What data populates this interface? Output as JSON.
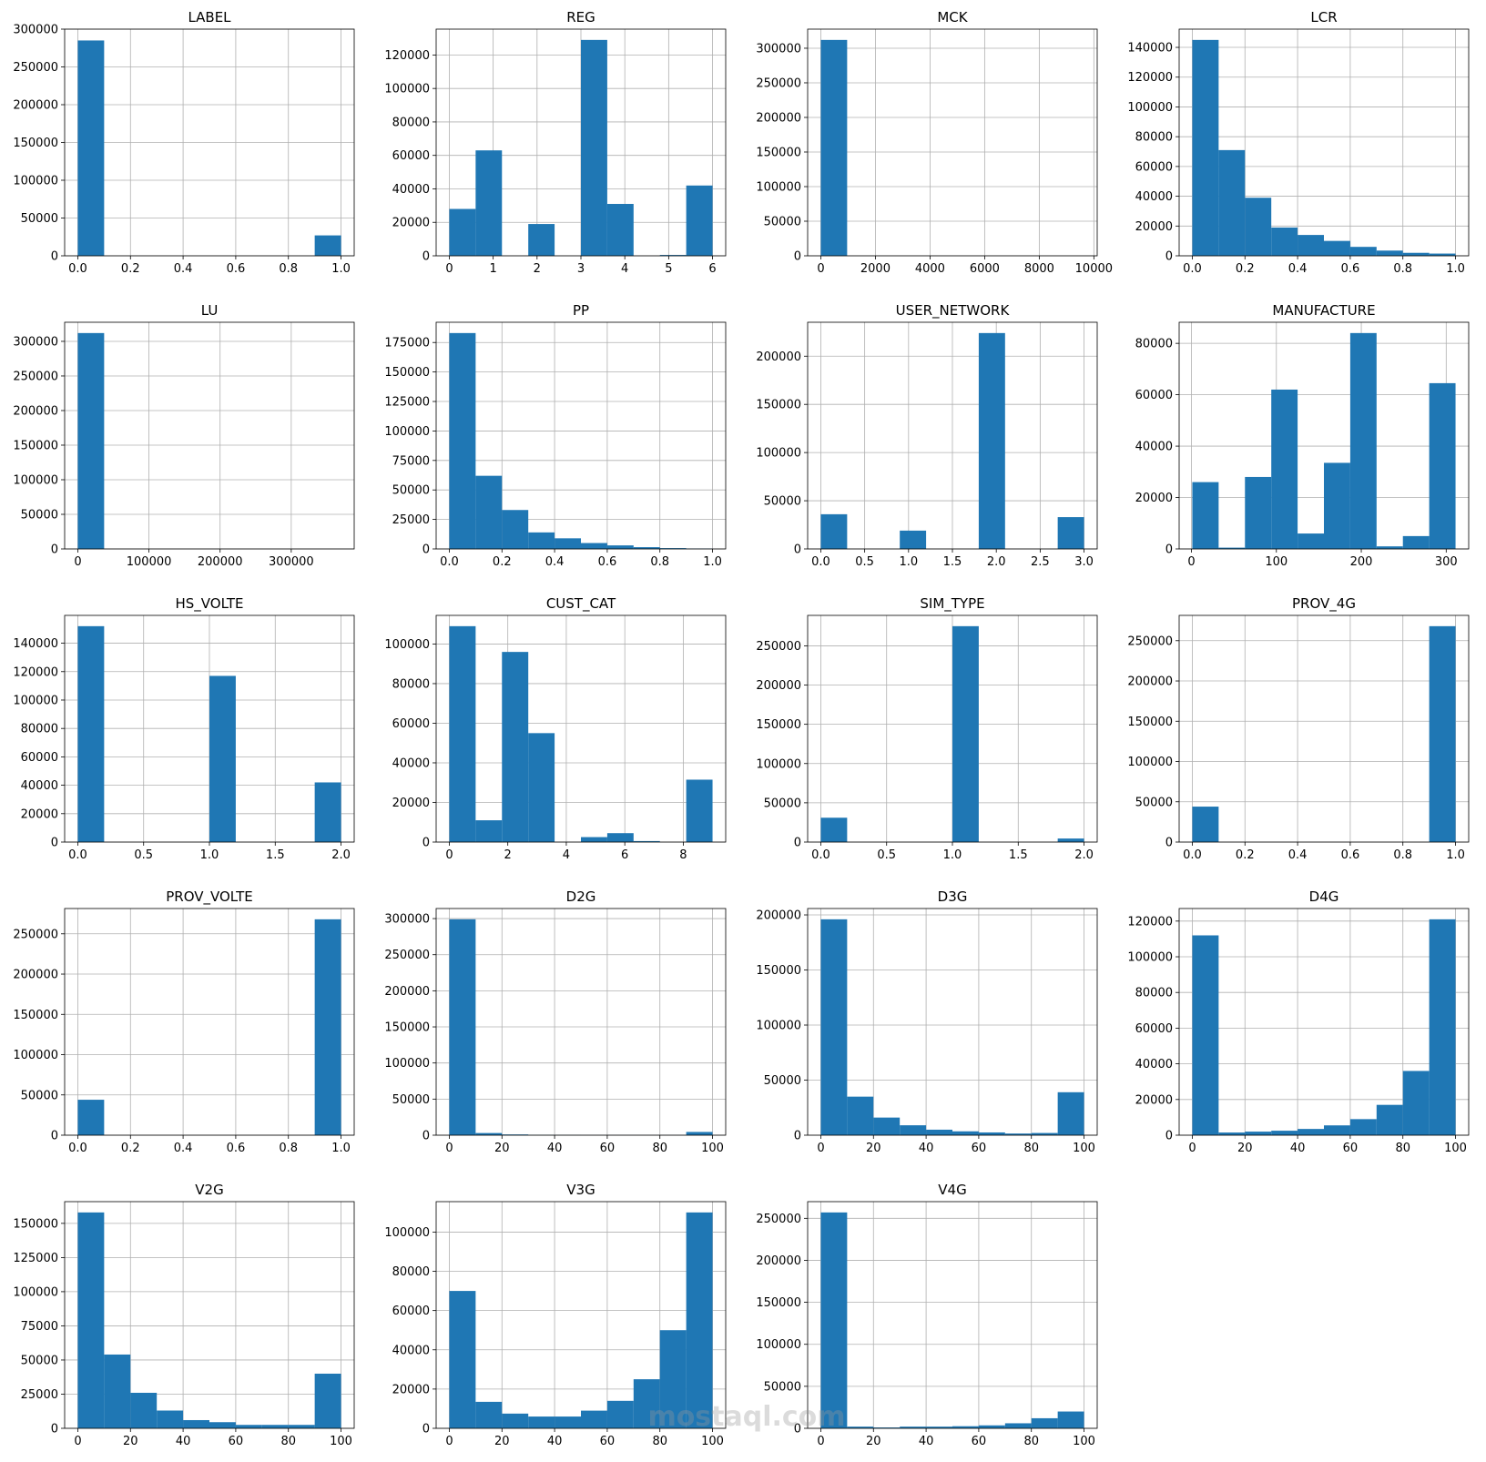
{
  "watermark": "mostaql.com",
  "chart_data": [
    {
      "type": "histogram",
      "title": "LABEL",
      "color": "#1f77b4",
      "grid": true,
      "bins": [
        0,
        0.1,
        0.2,
        0.3,
        0.4,
        0.5,
        0.6,
        0.7,
        0.8,
        0.9,
        1
      ],
      "values": [
        285000,
        0,
        0,
        0,
        0,
        0,
        0,
        0,
        0,
        27000
      ],
      "xlim": [
        -0.05,
        1.05
      ],
      "ylim": [
        0,
        300000
      ],
      "xticks": [
        {
          "value": 0,
          "label": "0.0"
        },
        0.2,
        0.4,
        0.6,
        0.8,
        {
          "value": 1,
          "label": "1.0"
        }
      ],
      "yticks": [
        0,
        50000,
        100000,
        150000,
        200000,
        250000,
        300000
      ]
    },
    {
      "type": "histogram",
      "title": "REG",
      "color": "#1f77b4",
      "grid": true,
      "bins": [
        0,
        0.6,
        1.2,
        1.8,
        2.4,
        3,
        3.6,
        4.2,
        4.8,
        5.4,
        6
      ],
      "values": [
        28000,
        63000,
        0,
        19000,
        0,
        129000,
        31000,
        0,
        500,
        42000
      ],
      "xlim": [
        -0.3,
        6.3
      ],
      "ylim": [
        0,
        135450
      ],
      "xticks": [
        0,
        1,
        2,
        3,
        4,
        5,
        6
      ],
      "yticks": [
        0,
        20000,
        40000,
        60000,
        80000,
        100000,
        120000
      ]
    },
    {
      "type": "histogram",
      "title": "MCK",
      "color": "#1f77b4",
      "grid": true,
      "bins": [
        0,
        964,
        1928,
        2892,
        3856,
        4820,
        5784,
        6748,
        7712,
        8676,
        9640
      ],
      "values": [
        312000,
        0,
        0,
        0,
        0,
        0,
        0,
        0,
        0,
        0
      ],
      "xlim": [
        -482,
        10122
      ],
      "ylim": [
        0,
        327600
      ],
      "xticks": [
        0,
        2000,
        4000,
        6000,
        8000,
        10000
      ],
      "yticks": [
        0,
        50000,
        100000,
        150000,
        200000,
        250000,
        300000
      ]
    },
    {
      "type": "histogram",
      "title": "LCR",
      "color": "#1f77b4",
      "grid": true,
      "bins": [
        0,
        0.1,
        0.2,
        0.3,
        0.4,
        0.5,
        0.6,
        0.7,
        0.8,
        0.9,
        1
      ],
      "values": [
        145000,
        71000,
        39000,
        19000,
        14000,
        10000,
        6000,
        3500,
        2000,
        1500
      ],
      "xlim": [
        -0.05,
        1.05
      ],
      "ylim": [
        0,
        152250
      ],
      "xticks": [
        {
          "value": 0,
          "label": "0.0"
        },
        0.2,
        0.4,
        0.6,
        0.8,
        {
          "value": 1,
          "label": "1.0"
        }
      ],
      "yticks": [
        0,
        20000,
        40000,
        60000,
        80000,
        100000,
        120000,
        140000
      ]
    },
    {
      "type": "histogram",
      "title": "LU",
      "color": "#1f77b4",
      "grid": true,
      "bins": [
        0,
        37000,
        74000,
        111000,
        148000,
        185000,
        222000,
        259000,
        296000,
        333000,
        370000
      ],
      "values": [
        312000,
        0,
        0,
        0,
        0,
        0,
        0,
        0,
        0,
        0
      ],
      "xlim": [
        -18500,
        388500
      ],
      "ylim": [
        0,
        327600
      ],
      "xticks": [
        0,
        100000,
        200000,
        300000
      ],
      "yticks": [
        0,
        50000,
        100000,
        150000,
        200000,
        250000,
        300000
      ]
    },
    {
      "type": "histogram",
      "title": "PP",
      "color": "#1f77b4",
      "grid": true,
      "bins": [
        0,
        0.1,
        0.2,
        0.3,
        0.4,
        0.5,
        0.6,
        0.7,
        0.8,
        0.9,
        1
      ],
      "values": [
        183000,
        62000,
        33000,
        14000,
        9000,
        5000,
        3000,
        1500,
        700,
        300
      ],
      "xlim": [
        -0.05,
        1.05
      ],
      "ylim": [
        0,
        192150
      ],
      "xticks": [
        {
          "value": 0,
          "label": "0.0"
        },
        0.2,
        0.4,
        0.6,
        0.8,
        {
          "value": 1,
          "label": "1.0"
        }
      ],
      "yticks": [
        0,
        25000,
        50000,
        75000,
        100000,
        125000,
        150000,
        175000
      ]
    },
    {
      "type": "histogram",
      "title": "USER_NETWORK",
      "color": "#1f77b4",
      "grid": true,
      "bins": [
        0,
        0.3,
        0.6,
        0.9,
        1.2,
        1.5,
        1.8,
        2.1,
        2.4,
        2.7,
        3
      ],
      "values": [
        36000,
        0,
        0,
        19000,
        0,
        0,
        224000,
        0,
        0,
        33000
      ],
      "xlim": [
        -0.15,
        3.15
      ],
      "ylim": [
        0,
        235200
      ],
      "xticks": [
        {
          "value": 0,
          "label": "0.0"
        },
        0.5,
        {
          "value": 1,
          "label": "1.0"
        },
        1.5,
        {
          "value": 2,
          "label": "2.0"
        },
        2.5,
        {
          "value": 3,
          "label": "3.0"
        }
      ],
      "yticks": [
        0,
        50000,
        100000,
        150000,
        200000
      ]
    },
    {
      "type": "histogram",
      "title": "MANUFACTURE",
      "color": "#1f77b4",
      "grid": true,
      "bins": [
        1,
        32,
        63,
        94,
        125,
        156,
        187,
        218,
        249,
        280,
        311
      ],
      "values": [
        26000,
        500,
        28000,
        62000,
        6000,
        33500,
        84000,
        1000,
        5000,
        64500
      ],
      "xlim": [
        -14.5,
        326.5
      ],
      "ylim": [
        0,
        88200
      ],
      "xticks": [
        0,
        100,
        200,
        300
      ],
      "yticks": [
        0,
        20000,
        40000,
        60000,
        80000
      ]
    },
    {
      "type": "histogram",
      "title": "HS_VOLTE",
      "color": "#1f77b4",
      "grid": true,
      "bins": [
        0,
        0.2,
        0.4,
        0.6,
        0.8,
        1,
        1.2,
        1.4,
        1.6,
        1.8,
        2
      ],
      "values": [
        152000,
        0,
        0,
        0,
        0,
        117000,
        0,
        0,
        0,
        42000
      ],
      "xlim": [
        -0.1,
        2.1
      ],
      "ylim": [
        0,
        159600
      ],
      "xticks": [
        {
          "value": 0,
          "label": "0.0"
        },
        0.5,
        {
          "value": 1,
          "label": "1.0"
        },
        1.5,
        {
          "value": 2,
          "label": "2.0"
        }
      ],
      "yticks": [
        0,
        20000,
        40000,
        60000,
        80000,
        100000,
        120000,
        140000
      ]
    },
    {
      "type": "histogram",
      "title": "CUST_CAT",
      "color": "#1f77b4",
      "grid": true,
      "bins": [
        0,
        0.9,
        1.8,
        2.7,
        3.6,
        4.5,
        5.4,
        6.3,
        7.2,
        8.1,
        9
      ],
      "values": [
        109000,
        11000,
        96000,
        55000,
        0,
        2500,
        4500,
        500,
        0,
        31500
      ],
      "xlim": [
        -0.45,
        9.45
      ],
      "ylim": [
        0,
        114450
      ],
      "xticks": [
        0,
        2,
        4,
        6,
        8
      ],
      "yticks": [
        0,
        20000,
        40000,
        60000,
        80000,
        100000
      ]
    },
    {
      "type": "histogram",
      "title": "SIM_TYPE",
      "color": "#1f77b4",
      "grid": true,
      "bins": [
        0,
        0.2,
        0.4,
        0.6,
        0.8,
        1,
        1.2,
        1.4,
        1.6,
        1.8,
        2
      ],
      "values": [
        31000,
        0,
        0,
        0,
        0,
        275000,
        0,
        0,
        0,
        4500
      ],
      "xlim": [
        -0.1,
        2.1
      ],
      "ylim": [
        0,
        288750
      ],
      "xticks": [
        {
          "value": 0,
          "label": "0.0"
        },
        0.5,
        {
          "value": 1,
          "label": "1.0"
        },
        1.5,
        {
          "value": 2,
          "label": "2.0"
        }
      ],
      "yticks": [
        0,
        50000,
        100000,
        150000,
        200000,
        250000
      ]
    },
    {
      "type": "histogram",
      "title": "PROV_4G",
      "color": "#1f77b4",
      "grid": true,
      "bins": [
        0,
        0.1,
        0.2,
        0.3,
        0.4,
        0.5,
        0.6,
        0.7,
        0.8,
        0.9,
        1
      ],
      "values": [
        44000,
        0,
        0,
        0,
        0,
        0,
        0,
        0,
        0,
        268000
      ],
      "xlim": [
        -0.05,
        1.05
      ],
      "ylim": [
        0,
        281400
      ],
      "xticks": [
        {
          "value": 0,
          "label": "0.0"
        },
        0.2,
        0.4,
        0.6,
        0.8,
        {
          "value": 1,
          "label": "1.0"
        }
      ],
      "yticks": [
        0,
        50000,
        100000,
        150000,
        200000,
        250000
      ]
    },
    {
      "type": "histogram",
      "title": "PROV_VOLTE",
      "color": "#1f77b4",
      "grid": true,
      "bins": [
        0,
        0.1,
        0.2,
        0.3,
        0.4,
        0.5,
        0.6,
        0.7,
        0.8,
        0.9,
        1
      ],
      "values": [
        44000,
        0,
        0,
        0,
        0,
        0,
        0,
        0,
        0,
        268000
      ],
      "xlim": [
        -0.05,
        1.05
      ],
      "ylim": [
        0,
        281400
      ],
      "xticks": [
        {
          "value": 0,
          "label": "0.0"
        },
        0.2,
        0.4,
        0.6,
        0.8,
        {
          "value": 1,
          "label": "1.0"
        }
      ],
      "yticks": [
        0,
        50000,
        100000,
        150000,
        200000,
        250000
      ]
    },
    {
      "type": "histogram",
      "title": "D2G",
      "color": "#1f77b4",
      "grid": true,
      "bins": [
        0,
        10,
        20,
        30,
        40,
        50,
        60,
        70,
        80,
        90,
        100
      ],
      "values": [
        299000,
        3000,
        1000,
        300,
        200,
        100,
        100,
        100,
        100,
        4500
      ],
      "xlim": [
        -5,
        105
      ],
      "ylim": [
        0,
        313950
      ],
      "xticks": [
        0,
        20,
        40,
        60,
        80,
        100
      ],
      "yticks": [
        0,
        50000,
        100000,
        150000,
        200000,
        250000,
        300000
      ]
    },
    {
      "type": "histogram",
      "title": "D3G",
      "color": "#1f77b4",
      "grid": true,
      "bins": [
        0,
        10,
        20,
        30,
        40,
        50,
        60,
        70,
        80,
        90,
        100
      ],
      "values": [
        196000,
        35000,
        16000,
        9000,
        5000,
        3500,
        2500,
        1500,
        2000,
        39000
      ],
      "xlim": [
        -5,
        105
      ],
      "ylim": [
        0,
        205800
      ],
      "xticks": [
        0,
        20,
        40,
        60,
        80,
        100
      ],
      "yticks": [
        0,
        50000,
        100000,
        150000,
        200000
      ]
    },
    {
      "type": "histogram",
      "title": "D4G",
      "color": "#1f77b4",
      "grid": true,
      "bins": [
        0,
        10,
        20,
        30,
        40,
        50,
        60,
        70,
        80,
        90,
        100
      ],
      "values": [
        112000,
        1500,
        2000,
        2500,
        3500,
        5500,
        9000,
        17000,
        36000,
        121000
      ],
      "xlim": [
        -5,
        105
      ],
      "ylim": [
        0,
        127050
      ],
      "xticks": [
        0,
        20,
        40,
        60,
        80,
        100
      ],
      "yticks": [
        0,
        20000,
        40000,
        60000,
        80000,
        100000,
        120000
      ]
    },
    {
      "type": "histogram",
      "title": "V2G",
      "color": "#1f77b4",
      "grid": true,
      "bins": [
        0,
        10,
        20,
        30,
        40,
        50,
        60,
        70,
        80,
        90,
        100
      ],
      "values": [
        158000,
        54000,
        26000,
        13000,
        6000,
        4500,
        2500,
        2500,
        2500,
        40000
      ],
      "xlim": [
        -5,
        105
      ],
      "ylim": [
        0,
        165900
      ],
      "xticks": [
        0,
        20,
        40,
        60,
        80,
        100
      ],
      "yticks": [
        0,
        25000,
        50000,
        75000,
        100000,
        125000,
        150000
      ]
    },
    {
      "type": "histogram",
      "title": "V3G",
      "color": "#1f77b4",
      "grid": true,
      "bins": [
        0,
        10,
        20,
        30,
        40,
        50,
        60,
        70,
        80,
        90,
        100
      ],
      "values": [
        70000,
        13500,
        7500,
        6000,
        6000,
        9000,
        14000,
        25000,
        50000,
        110000
      ],
      "xlim": [
        -5,
        105
      ],
      "ylim": [
        0,
        115500
      ],
      "xticks": [
        0,
        20,
        40,
        60,
        80,
        100
      ],
      "yticks": [
        0,
        20000,
        40000,
        60000,
        80000,
        100000
      ]
    },
    {
      "type": "histogram",
      "title": "V4G",
      "color": "#1f77b4",
      "grid": true,
      "bins": [
        0,
        10,
        20,
        30,
        40,
        50,
        60,
        70,
        80,
        90,
        100
      ],
      "values": [
        257000,
        2000,
        1000,
        2000,
        2000,
        2500,
        3500,
        6000,
        12000,
        20000
      ],
      "xlim": [
        -5,
        105
      ],
      "ylim": [
        0,
        269850
      ],
      "xticks": [
        0,
        20,
        40,
        60,
        80,
        100
      ],
      "yticks": [
        0,
        50000,
        100000,
        150000,
        200000,
        250000
      ]
    }
  ]
}
